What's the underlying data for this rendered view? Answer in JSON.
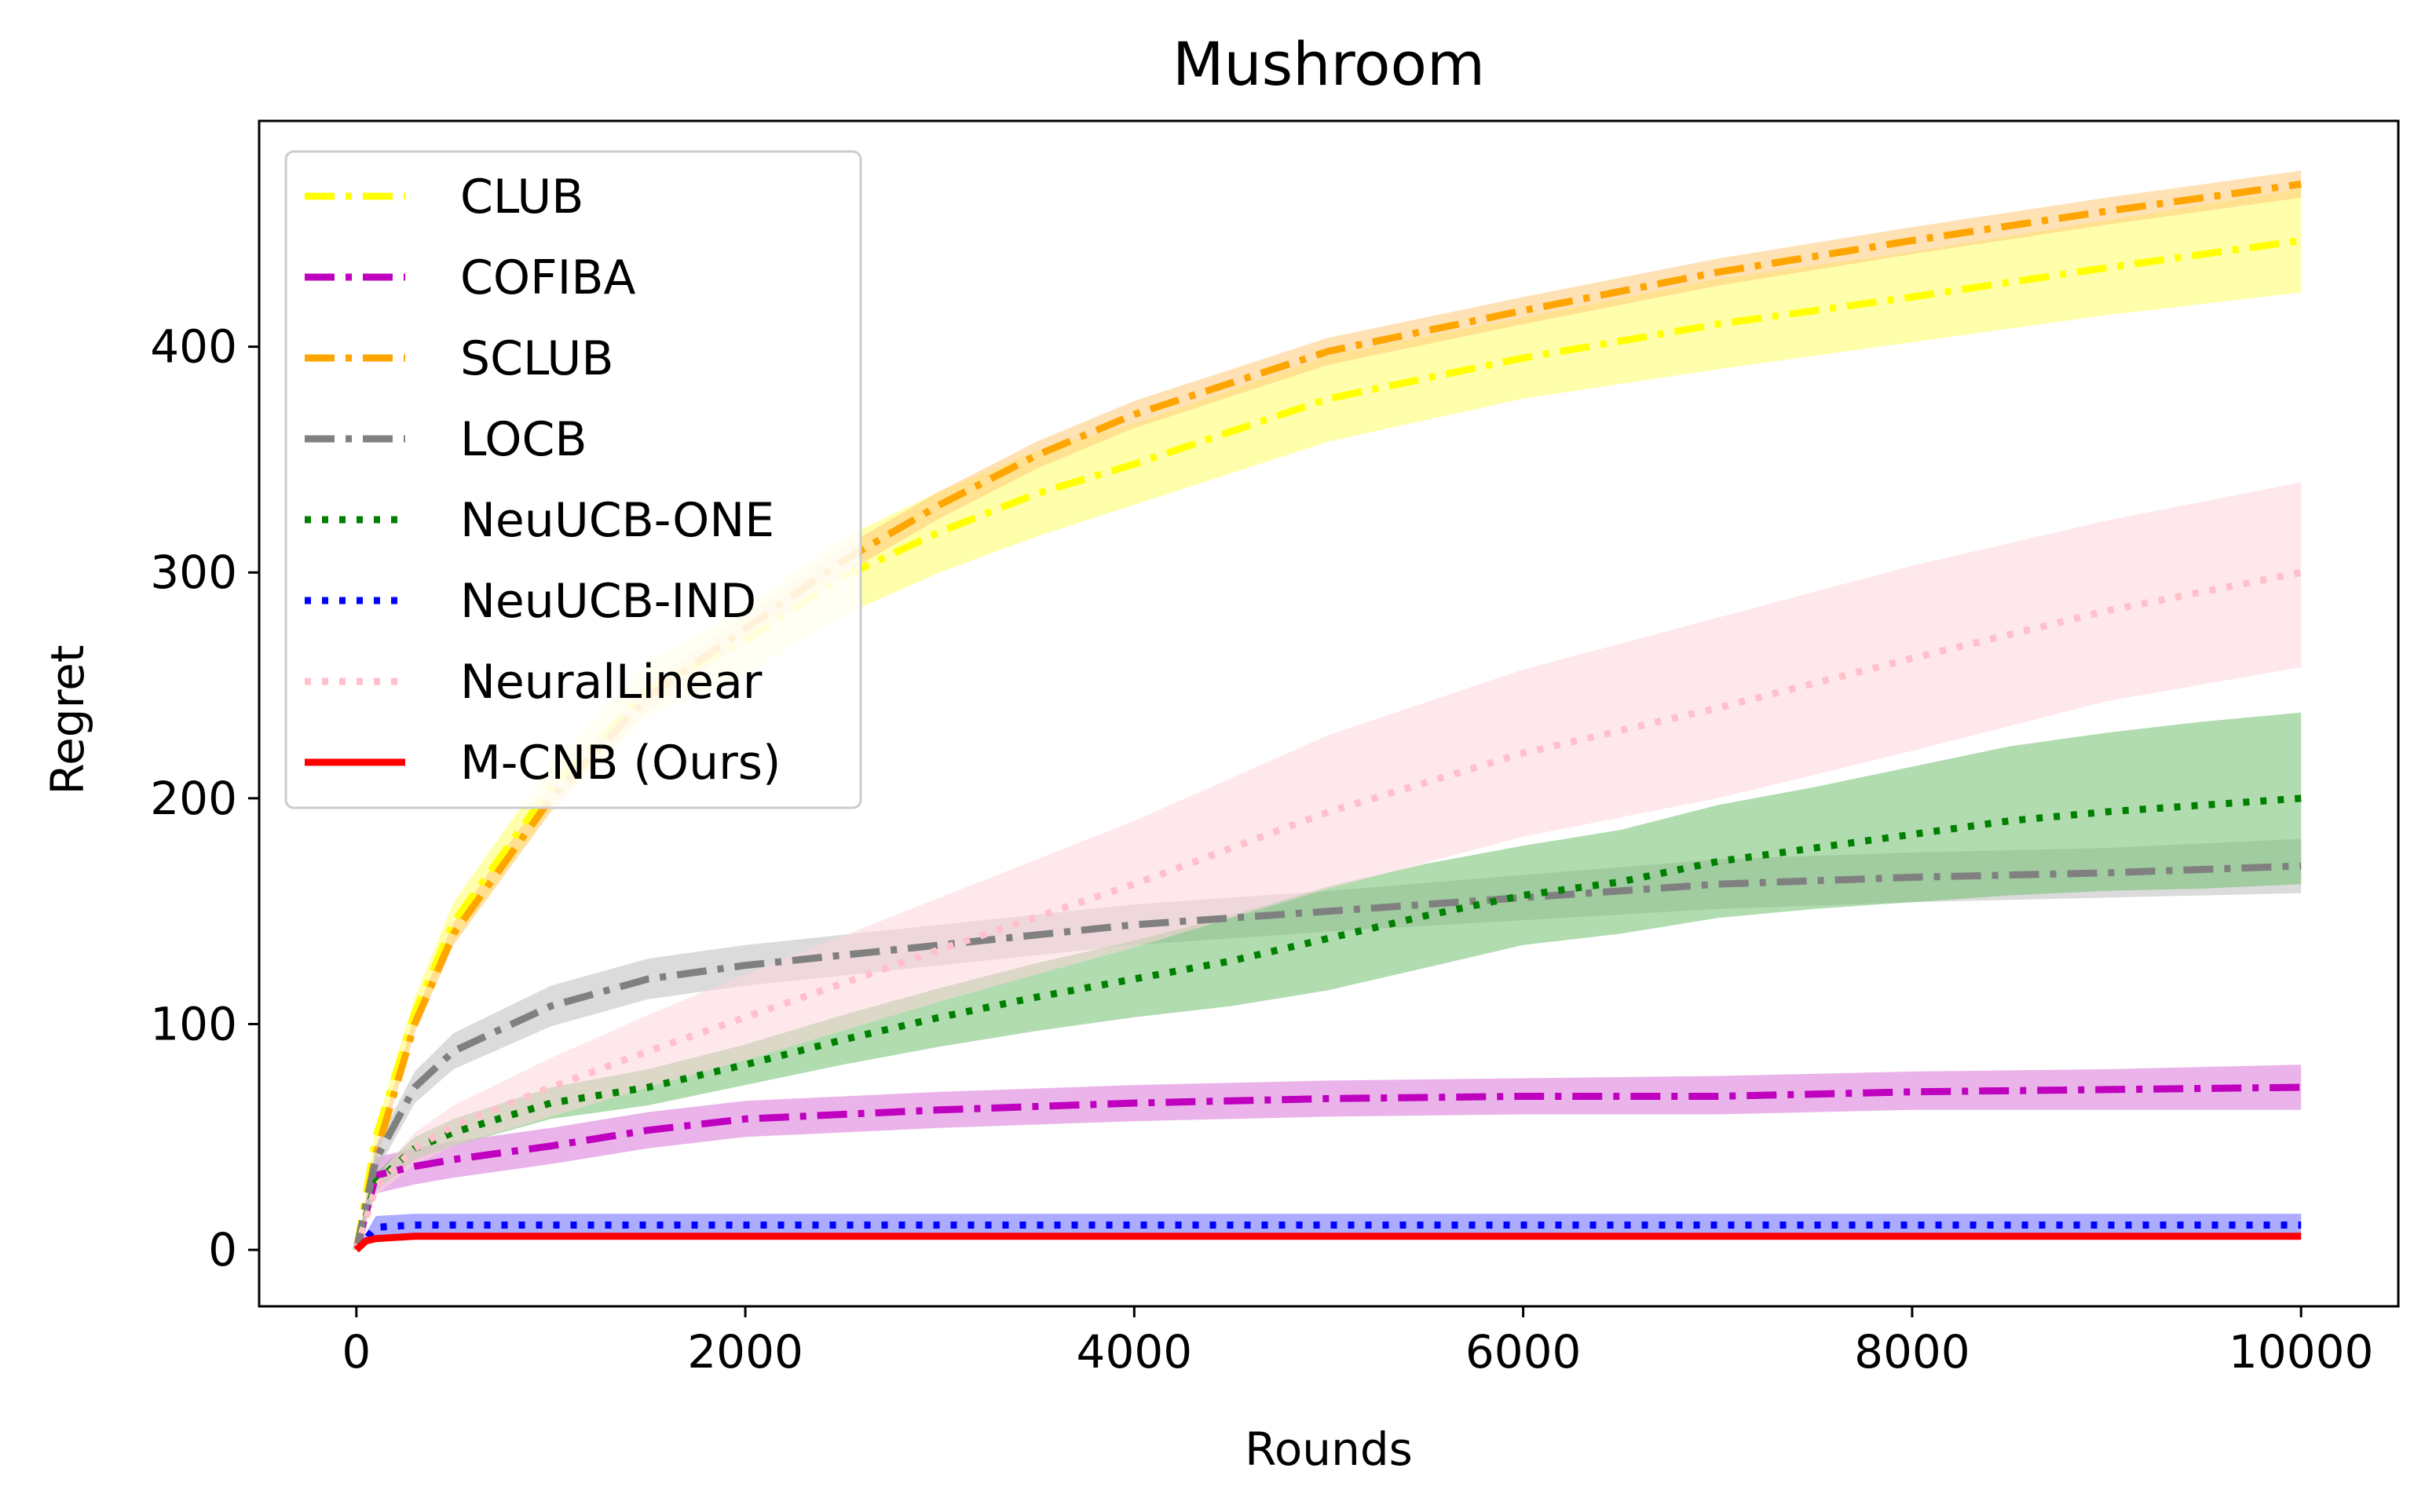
{
  "chart_data": {
    "type": "line",
    "title": "Mushroom",
    "xlabel": "Rounds",
    "ylabel": "Regret",
    "xlim": [
      -500,
      10500
    ],
    "ylim": [
      -25,
      500
    ],
    "xticks": [
      0,
      2000,
      4000,
      6000,
      8000,
      10000
    ],
    "yticks": [
      0,
      100,
      200,
      300,
      400
    ],
    "grid": false,
    "legend_position": "upper-left",
    "series": [
      {
        "name": "CLUB",
        "color": "#ffff00",
        "band_color": "#ffff66",
        "style": "dashdot",
        "x": [
          0,
          100,
          300,
          500,
          1000,
          1500,
          2000,
          2500,
          3000,
          3500,
          4000,
          5000,
          6000,
          7000,
          8000,
          9000,
          10000
        ],
        "y": [
          0,
          50,
          105,
          145,
          205,
          248,
          270,
          298,
          318,
          335,
          348,
          377,
          395,
          410,
          422,
          435,
          447
        ],
        "y_lower": [
          0,
          46,
          98,
          136,
          195,
          236,
          255,
          281,
          300,
          316,
          330,
          358,
          377,
          390,
          402,
          414,
          424
        ],
        "y_upper": [
          0,
          54,
          112,
          154,
          215,
          260,
          285,
          315,
          336,
          354,
          366,
          396,
          413,
          430,
          442,
          456,
          470
        ]
      },
      {
        "name": "COFIBA",
        "color": "#bf00bf",
        "band_color": "#d877d8",
        "style": "dashdot",
        "x": [
          0,
          100,
          300,
          500,
          1000,
          1500,
          2000,
          3000,
          4000,
          5000,
          6000,
          7000,
          8000,
          9000,
          10000
        ],
        "y": [
          0,
          33,
          37,
          40,
          46,
          53,
          58,
          62,
          65,
          67,
          68,
          68,
          70,
          71,
          72
        ],
        "y_lower": [
          0,
          25,
          29,
          32,
          38,
          45,
          50,
          54,
          57,
          59,
          60,
          60,
          62,
          62,
          62
        ],
        "y_upper": [
          0,
          41,
          45,
          48,
          54,
          61,
          66,
          70,
          73,
          75,
          76,
          77,
          79,
          80,
          82
        ]
      },
      {
        "name": "SCLUB",
        "color": "#ffa500",
        "band_color": "#ffc87a",
        "style": "dashdot",
        "x": [
          0,
          100,
          300,
          500,
          1000,
          1500,
          2000,
          2500,
          3000,
          3500,
          4000,
          5000,
          6000,
          7000,
          8000,
          9000,
          10000
        ],
        "y": [
          0,
          42,
          100,
          140,
          200,
          245,
          275,
          305,
          330,
          352,
          370,
          398,
          416,
          433,
          447,
          460,
          472
        ],
        "y_lower": [
          0,
          39,
          96,
          135,
          194,
          239,
          269,
          299,
          324,
          346,
          364,
          392,
          410,
          427,
          441,
          454,
          466
        ],
        "y_upper": [
          0,
          45,
          104,
          145,
          206,
          251,
          281,
          311,
          336,
          358,
          376,
          404,
          422,
          439,
          453,
          466,
          478
        ]
      },
      {
        "name": "LOCB",
        "color": "#808080",
        "band_color": "#bdbdbd",
        "style": "dashdot",
        "x": [
          0,
          100,
          300,
          500,
          1000,
          1500,
          2000,
          3000,
          4000,
          5000,
          6000,
          7000,
          8000,
          9000,
          10000
        ],
        "y": [
          0,
          40,
          72,
          88,
          108,
          120,
          126,
          135,
          144,
          150,
          156,
          162,
          165,
          167,
          170
        ],
        "y_lower": [
          0,
          34,
          65,
          80,
          99,
          111,
          117,
          126,
          135,
          141,
          146,
          151,
          154,
          156,
          158
        ],
        "y_upper": [
          0,
          46,
          79,
          96,
          117,
          129,
          135,
          144,
          153,
          159,
          166,
          173,
          176,
          178,
          182
        ]
      },
      {
        "name": "NeuUCB-ONE",
        "color": "#008000",
        "band_color": "#6fbf6f",
        "style": "dotted",
        "x": [
          0,
          100,
          300,
          500,
          1000,
          1500,
          2000,
          2500,
          3000,
          3500,
          4000,
          4500,
          5000,
          5500,
          6000,
          6500,
          7000,
          7500,
          8000,
          8500,
          9000,
          9500,
          10000
        ],
        "y": [
          0,
          30,
          45,
          52,
          65,
          72,
          82,
          93,
          103,
          112,
          120,
          128,
          138,
          148,
          157,
          163,
          172,
          178,
          184,
          190,
          194,
          197,
          200
        ],
        "y_lower": [
          0,
          26,
          40,
          46,
          58,
          64,
          73,
          82,
          90,
          97,
          103,
          108,
          115,
          125,
          135,
          140,
          147,
          151,
          154,
          157,
          159,
          160,
          162
        ],
        "y_upper": [
          0,
          34,
          50,
          58,
          72,
          80,
          91,
          104,
          116,
          127,
          137,
          148,
          161,
          171,
          179,
          186,
          197,
          205,
          214,
          223,
          229,
          234,
          238
        ]
      },
      {
        "name": "NeuUCB-IND",
        "color": "#0000ff",
        "band_color": "#6666ff",
        "style": "dotted",
        "x": [
          0,
          100,
          300,
          1000,
          3000,
          5000,
          7000,
          10000
        ],
        "y": [
          0,
          10,
          11,
          11,
          11,
          11,
          11,
          11
        ],
        "y_lower": [
          0,
          6,
          6,
          6,
          6,
          6,
          6,
          6
        ],
        "y_upper": [
          0,
          15,
          16,
          16,
          16,
          16,
          16,
          16
        ]
      },
      {
        "name": "NeuralLinear",
        "color": "#ffc0cb",
        "band_color": "#ffd6dd",
        "style": "dotted",
        "x": [
          0,
          100,
          300,
          500,
          1000,
          1500,
          2000,
          3000,
          4000,
          5000,
          6000,
          7000,
          8000,
          9000,
          10000
        ],
        "y": [
          0,
          28,
          45,
          55,
          72,
          88,
          103,
          133,
          162,
          194,
          220,
          240,
          262,
          283,
          300
        ],
        "y_lower": [
          0,
          24,
          38,
          46,
          59,
          72,
          84,
          110,
          134,
          160,
          183,
          200,
          221,
          243,
          258
        ],
        "y_upper": [
          0,
          32,
          52,
          64,
          85,
          104,
          122,
          156,
          190,
          228,
          257,
          280,
          303,
          323,
          340
        ]
      },
      {
        "name": "M-CNB (Ours)",
        "color": "#ff0000",
        "band_color": "#ff8080",
        "style": "solid",
        "x": [
          0,
          50,
          100,
          300,
          1000,
          5000,
          10000
        ],
        "y": [
          0,
          4,
          5,
          6,
          6,
          6,
          6
        ],
        "y_lower": [
          0,
          3,
          4,
          5,
          5,
          5,
          5
        ],
        "y_upper": [
          0,
          5,
          6,
          7,
          7,
          7,
          7
        ]
      }
    ]
  }
}
